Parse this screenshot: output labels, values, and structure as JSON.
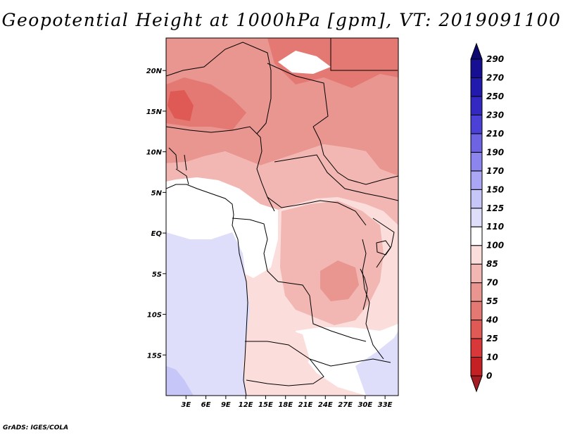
{
  "title": "Geopotential Height at 1000hPa [gpm], VT: 2019091100",
  "footer": "GrADS: IGES/COLA",
  "map": {
    "lon_range": [
      0,
      35
    ],
    "lat_range": [
      -20,
      24
    ],
    "lon_ticks": [
      {
        "value": 3,
        "label": "3E"
      },
      {
        "value": 6,
        "label": "6E"
      },
      {
        "value": 9,
        "label": "9E"
      },
      {
        "value": 12,
        "label": "12E"
      },
      {
        "value": 15,
        "label": "15E"
      },
      {
        "value": 18,
        "label": "18E"
      },
      {
        "value": 21,
        "label": "21E"
      },
      {
        "value": 24,
        "label": "24E"
      },
      {
        "value": 27,
        "label": "27E"
      },
      {
        "value": 30,
        "label": "30E"
      },
      {
        "value": 33,
        "label": "33E"
      }
    ],
    "lat_ticks": [
      {
        "value": 20,
        "label": "20N"
      },
      {
        "value": 15,
        "label": "15N"
      },
      {
        "value": 10,
        "label": "10N"
      },
      {
        "value": 5,
        "label": "5N"
      },
      {
        "value": 0,
        "label": "EQ"
      },
      {
        "value": -5,
        "label": "5S"
      },
      {
        "value": -10,
        "label": "10S"
      },
      {
        "value": -15,
        "label": "15S"
      }
    ]
  },
  "colorbar": {
    "labels": [
      "0",
      "10",
      "25",
      "40",
      "55",
      "70",
      "85",
      "100",
      "110",
      "125",
      "150",
      "170",
      "190",
      "210",
      "230",
      "250",
      "270",
      "290"
    ],
    "colors": [
      "#a51d22",
      "#c42125",
      "#d9383a",
      "#e05a55",
      "#e47872",
      "#e99590",
      "#f2b7b3",
      "#fbdedb",
      "#ffffff",
      "#dedefb",
      "#c6c6f8",
      "#aca7f4",
      "#8d85ee",
      "#6d63e3",
      "#4b41d6",
      "#3428c3",
      "#2219ad",
      "#170f92",
      "#0d0970"
    ]
  },
  "fields": {
    "very_high": "#e47872",
    "high": "#e99590",
    "mid": "#f2b7b3",
    "low": "#fbdedb",
    "neutral": "#ffffff",
    "blue_light": "#dedefb",
    "blue_mid": "#c6c6f8"
  }
}
